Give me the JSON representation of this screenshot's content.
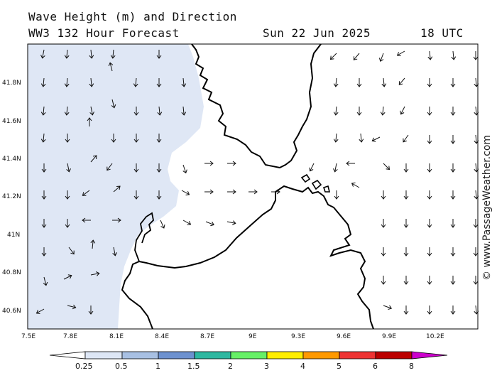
{
  "header": {
    "title": "Wave Height (m) and Direction",
    "model_line": "WW3 132 Hour Forecast",
    "date": "Sun 22 Jun 2025",
    "time": "18 UTC"
  },
  "watermark": "© www.PassageWeather.com",
  "axes": {
    "lat_labels": [
      "41.8N",
      "41.6N",
      "41.4N",
      "41.2N",
      "41N",
      "40.8N",
      "40.6N"
    ],
    "lon_labels": [
      "7.5E",
      "7.8E",
      "8.1E",
      "8.4E",
      "8.7E",
      "9E",
      "9.3E",
      "9.6E",
      "9.9E",
      "10.2E"
    ]
  },
  "legend": {
    "labels": [
      "0.25",
      "0.5",
      "1",
      "1.5",
      "2",
      "3",
      "4",
      "5",
      "6",
      "8"
    ],
    "colors": [
      "#ffffff",
      "#dde6f5",
      "#a8c0e3",
      "#6d91cf",
      "#2eb8a0",
      "#66f066",
      "#ffee00",
      "#ff9900",
      "#ee3333",
      "#bb0000",
      "#cc00cc"
    ]
  },
  "colors": {
    "sea_low": "#ffffff",
    "sea_band": "#dfe7f5",
    "coast": "#000000",
    "arrow": "#111111"
  }
}
